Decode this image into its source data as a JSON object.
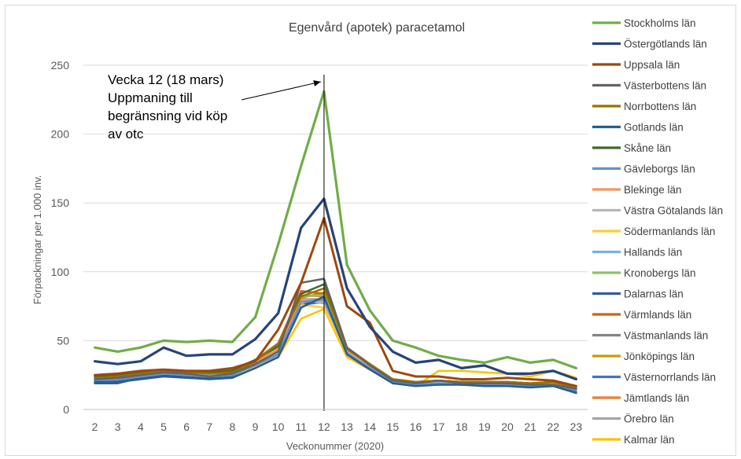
{
  "chart_data": {
    "type": "line",
    "title": "Egenvård (apotek) paracetamol",
    "xlabel": "Veckonummer (2020)",
    "ylabel": "Förpackningar per 1.000 inv.",
    "x": [
      2,
      3,
      4,
      5,
      6,
      7,
      8,
      9,
      10,
      11,
      12,
      13,
      14,
      15,
      16,
      17,
      18,
      19,
      20,
      21,
      22,
      23
    ],
    "ylim": [
      0,
      250
    ],
    "yticks": [
      0,
      50,
      100,
      150,
      200,
      250
    ],
    "grid": true,
    "legend_position": "right",
    "marker_x": 12,
    "annotation": {
      "lines": [
        "Vecka 12 (18 mars)",
        "Uppmaning till",
        "begränsning vid köp",
        "av otc"
      ],
      "arrow_to_x": 12,
      "arrow_to_y": 238
    },
    "series": [
      {
        "name": "Stockholms län",
        "color": "#70ad47",
        "width": 3.2,
        "values": [
          45,
          42,
          45,
          50,
          49,
          50,
          49,
          67,
          120,
          177,
          231,
          105,
          72,
          50,
          45,
          39,
          36,
          34,
          38,
          34,
          36,
          30
        ]
      },
      {
        "name": "Östergötlands län",
        "color": "#264478",
        "width": 3.2,
        "values": [
          35,
          33,
          35,
          45,
          39,
          40,
          40,
          51,
          70,
          132,
          153,
          88,
          60,
          42,
          34,
          36,
          30,
          32,
          26,
          26,
          28,
          22
        ]
      },
      {
        "name": "Uppsala län",
        "color": "#9e480e",
        "width": 3,
        "values": [
          25,
          26,
          28,
          29,
          28,
          28,
          30,
          35,
          58,
          92,
          139,
          75,
          63,
          28,
          24,
          24,
          22,
          22,
          23,
          22,
          21,
          17
        ]
      },
      {
        "name": "Västerbottens län",
        "color": "#636363",
        "width": 2.5,
        "values": [
          22,
          23,
          25,
          27,
          26,
          24,
          26,
          33,
          42,
          92,
          95,
          45,
          32,
          21,
          19,
          21,
          19,
          19,
          19,
          18,
          18,
          15
        ]
      },
      {
        "name": "Norrbottens län",
        "color": "#997300",
        "width": 2.5,
        "values": [
          23,
          24,
          26,
          28,
          27,
          26,
          27,
          35,
          48,
          82,
          88,
          44,
          33,
          22,
          20,
          21,
          20,
          20,
          20,
          19,
          20,
          16
        ]
      },
      {
        "name": "Gotlands län",
        "color": "#255e91",
        "width": 2.5,
        "values": [
          20,
          20,
          22,
          24,
          23,
          22,
          23,
          30,
          38,
          74,
          82,
          40,
          29,
          19,
          17,
          18,
          18,
          17,
          17,
          16,
          17,
          12
        ]
      },
      {
        "name": "Skåne län",
        "color": "#43682b",
        "width": 2.5,
        "values": [
          24,
          25,
          27,
          28,
          28,
          27,
          28,
          36,
          46,
          84,
          91,
          44,
          33,
          22,
          20,
          21,
          20,
          20,
          20,
          19,
          20,
          16
        ]
      },
      {
        "name": "Gävleborgs län",
        "color": "#698ed0",
        "width": 2.5,
        "values": [
          21,
          22,
          24,
          26,
          25,
          24,
          25,
          32,
          40,
          78,
          80,
          41,
          30,
          20,
          18,
          19,
          18,
          18,
          18,
          17,
          18,
          14
        ]
      },
      {
        "name": "Blekinge län",
        "color": "#f1975a",
        "width": 2.5,
        "values": [
          24,
          25,
          27,
          28,
          27,
          27,
          28,
          34,
          44,
          80,
          79,
          43,
          32,
          22,
          19,
          21,
          19,
          19,
          19,
          18,
          19,
          15
        ]
      },
      {
        "name": "Västra Götalands län",
        "color": "#b7b7b7",
        "width": 2.5,
        "values": [
          23,
          24,
          26,
          27,
          27,
          26,
          27,
          34,
          44,
          79,
          78,
          43,
          32,
          21,
          19,
          20,
          19,
          19,
          19,
          18,
          19,
          15
        ]
      },
      {
        "name": "Södermanlands län",
        "color": "#ffcd33",
        "width": 2.5,
        "values": [
          21,
          22,
          24,
          26,
          25,
          24,
          25,
          31,
          40,
          76,
          74,
          41,
          31,
          20,
          18,
          19,
          19,
          18,
          18,
          17,
          18,
          15
        ]
      },
      {
        "name": "Hallands län",
        "color": "#7cafdd",
        "width": 2.5,
        "values": [
          22,
          23,
          25,
          27,
          26,
          25,
          26,
          33,
          42,
          80,
          77,
          42,
          31,
          21,
          19,
          20,
          19,
          19,
          19,
          18,
          19,
          15
        ]
      },
      {
        "name": "Kronobergs län",
        "color": "#8cc168",
        "width": 2.5,
        "values": [
          23,
          24,
          26,
          28,
          27,
          26,
          27,
          35,
          46,
          82,
          83,
          44,
          32,
          22,
          20,
          21,
          20,
          20,
          20,
          19,
          20,
          16
        ]
      },
      {
        "name": "Dalarnas län",
        "color": "#335aa1",
        "width": 2.5,
        "values": [
          19,
          19,
          23,
          25,
          24,
          23,
          24,
          31,
          40,
          76,
          80,
          41,
          30,
          20,
          18,
          19,
          18,
          18,
          18,
          17,
          18,
          12
        ]
      },
      {
        "name": "Värmlands län",
        "color": "#d26012",
        "width": 2.5,
        "values": [
          25,
          26,
          27,
          29,
          28,
          28,
          29,
          36,
          48,
          86,
          84,
          45,
          33,
          22,
          20,
          21,
          20,
          20,
          20,
          19,
          20,
          16
        ]
      },
      {
        "name": "Västmanlands län",
        "color": "#848484",
        "width": 2.5,
        "values": [
          22,
          23,
          25,
          27,
          26,
          25,
          26,
          33,
          43,
          80,
          80,
          43,
          31,
          21,
          19,
          20,
          19,
          19,
          19,
          18,
          19,
          15
        ]
      },
      {
        "name": "Jönköpings län",
        "color": "#cc9a00",
        "width": 2.5,
        "values": [
          23,
          24,
          26,
          28,
          27,
          26,
          27,
          34,
          45,
          81,
          85,
          44,
          32,
          22,
          20,
          21,
          20,
          20,
          20,
          19,
          20,
          16
        ]
      },
      {
        "name": "Västernorrlands län",
        "color": "#4472c4",
        "width": 2.5,
        "values": [
          20,
          21,
          23,
          25,
          24,
          23,
          24,
          31,
          40,
          76,
          78,
          41,
          30,
          20,
          18,
          19,
          18,
          18,
          18,
          17,
          18,
          13
        ]
      },
      {
        "name": "Jämtlands län",
        "color": "#ed7d31",
        "width": 2.5,
        "values": [
          24,
          25,
          27,
          29,
          28,
          27,
          28,
          35,
          45,
          83,
          82,
          44,
          32,
          22,
          20,
          21,
          20,
          20,
          20,
          19,
          20,
          16
        ]
      },
      {
        "name": "Örebro län",
        "color": "#a5a5a5",
        "width": 2.5,
        "values": [
          22,
          23,
          25,
          27,
          26,
          25,
          26,
          33,
          43,
          79,
          79,
          43,
          31,
          21,
          19,
          20,
          19,
          19,
          19,
          18,
          19,
          15
        ]
      },
      {
        "name": "Kalmar län",
        "color": "#ffc000",
        "width": 2.5,
        "values": [
          21,
          22,
          24,
          26,
          25,
          24,
          24,
          30,
          38,
          66,
          73,
          38,
          29,
          19,
          17,
          28,
          28,
          27,
          26,
          24,
          28,
          23
        ]
      }
    ]
  }
}
